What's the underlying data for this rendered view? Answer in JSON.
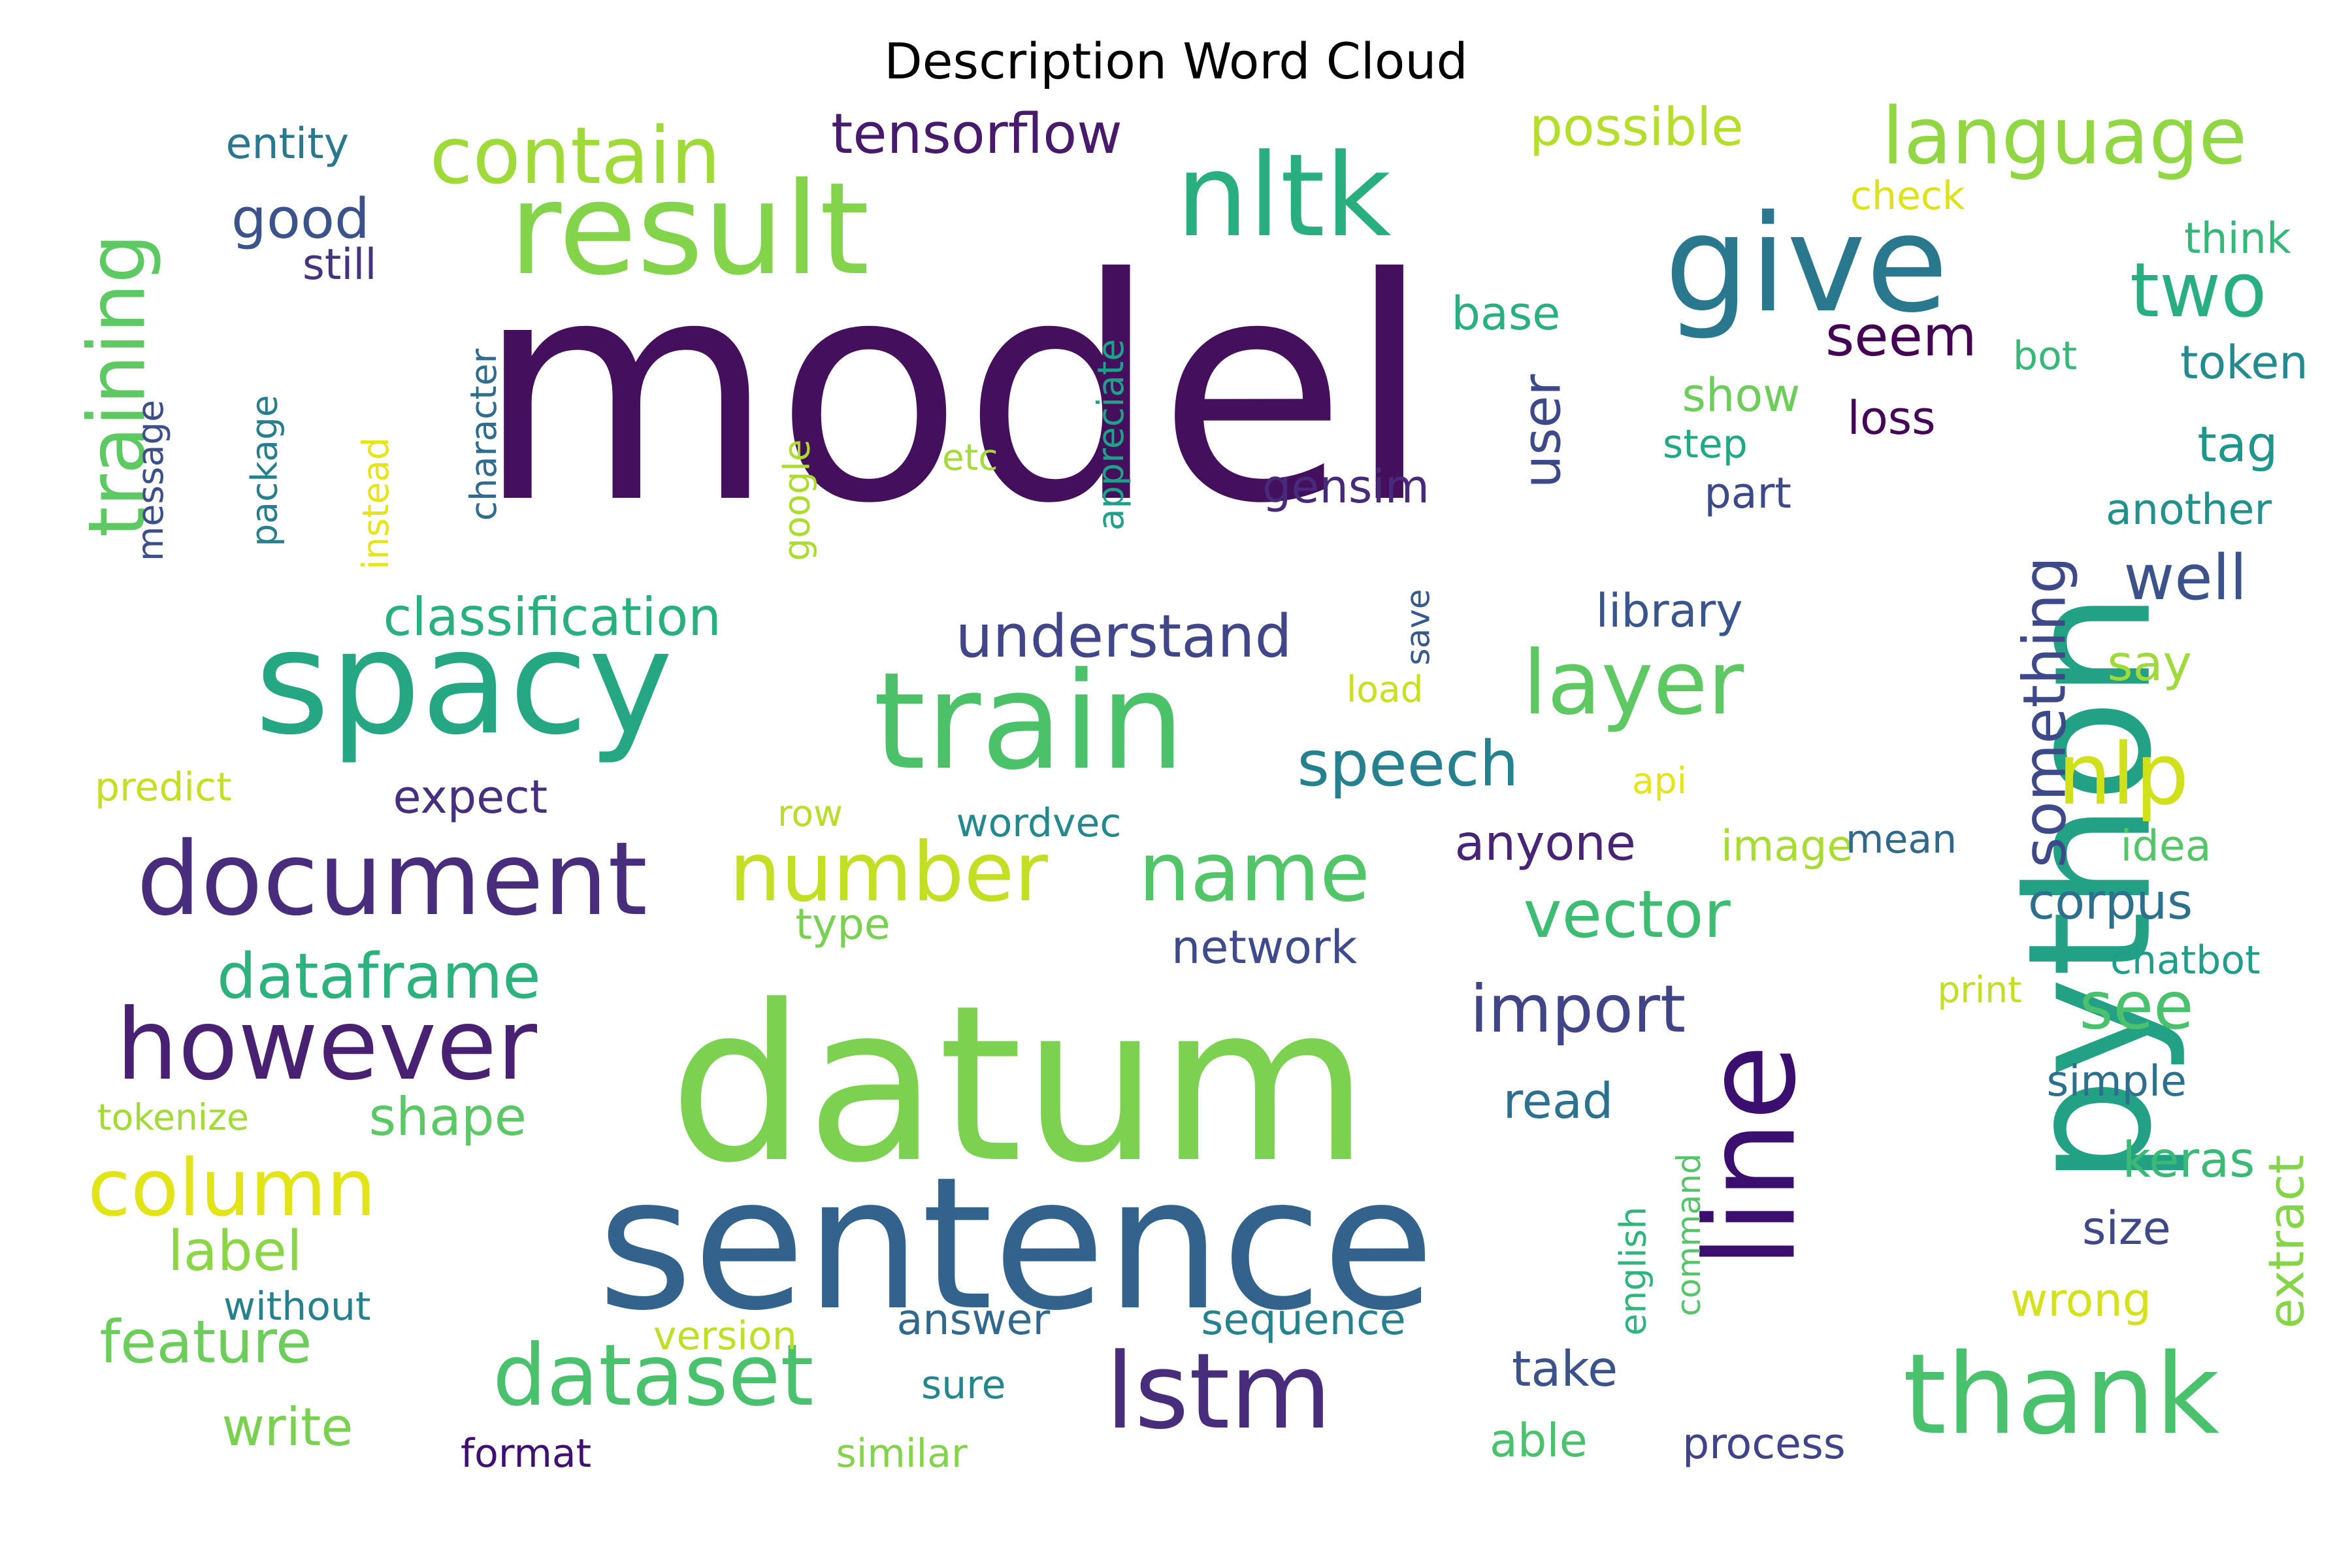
{
  "title": "Description Word Cloud",
  "palette": "viridis",
  "words": [
    {
      "text": "model",
      "color": "#440f5c"
    },
    {
      "text": "datum",
      "color": "#7cd250"
    },
    {
      "text": "sentence",
      "color": "#33638d"
    },
    {
      "text": "python",
      "color": "#22a184"
    },
    {
      "text": "spacy",
      "color": "#25a784"
    },
    {
      "text": "result",
      "color": "#84d44b"
    },
    {
      "text": "train",
      "color": "#4bc16a"
    },
    {
      "text": "give",
      "color": "#2a788e"
    },
    {
      "text": "nltk",
      "color": "#29af7f"
    },
    {
      "text": "line",
      "color": "#3b0f6f"
    },
    {
      "text": "thank",
      "color": "#4ac16d"
    },
    {
      "text": "lstm",
      "color": "#472d7b"
    },
    {
      "text": "document",
      "color": "#472d7b"
    },
    {
      "text": "however",
      "color": "#482173"
    },
    {
      "text": "training",
      "color": "#5ec962"
    },
    {
      "text": "contain",
      "color": "#a0da39"
    },
    {
      "text": "language",
      "color": "#90d743"
    },
    {
      "text": "layer",
      "color": "#5ec962"
    },
    {
      "text": "nlp",
      "color": "#d0e11c"
    },
    {
      "text": "number",
      "color": "#c2df23"
    },
    {
      "text": "name",
      "color": "#52c569"
    },
    {
      "text": "dataset",
      "color": "#4ac16d"
    },
    {
      "text": "column",
      "color": "#e2e418"
    },
    {
      "text": "two",
      "color": "#28ae80"
    },
    {
      "text": "vector",
      "color": "#3fbc73"
    },
    {
      "text": "see",
      "color": "#4ac16d"
    },
    {
      "text": "something",
      "color": "#3e4989"
    },
    {
      "text": "speech",
      "color": "#26818e"
    },
    {
      "text": "import",
      "color": "#414487"
    },
    {
      "text": "understand",
      "color": "#404688"
    },
    {
      "text": "classification",
      "color": "#2ab07f"
    },
    {
      "text": "dataframe",
      "color": "#2db27d"
    },
    {
      "text": "tensorflow",
      "color": "#481a6c"
    },
    {
      "text": "possible",
      "color": "#b5de2b"
    },
    {
      "text": "seem",
      "color": "#440154"
    },
    {
      "text": "well",
      "color": "#3b528b"
    },
    {
      "text": "user",
      "color": "#3e4989"
    },
    {
      "text": "feature",
      "color": "#6ccd5a"
    },
    {
      "text": "extract",
      "color": "#86d549"
    },
    {
      "text": "good",
      "color": "#3b528b"
    },
    {
      "text": "entity",
      "color": "#2a788e"
    },
    {
      "text": "still",
      "color": "#46337f"
    },
    {
      "text": "base",
      "color": "#2ab07f"
    },
    {
      "text": "token",
      "color": "#238a8d"
    },
    {
      "text": "tag",
      "color": "#1f968b"
    },
    {
      "text": "show",
      "color": "#6ccd5a"
    },
    {
      "text": "step",
      "color": "#22a884"
    },
    {
      "text": "loss",
      "color": "#450559"
    },
    {
      "text": "bot",
      "color": "#37b878"
    },
    {
      "text": "think",
      "color": "#35b779"
    },
    {
      "text": "check",
      "color": "#dde318"
    },
    {
      "text": "gensim",
      "color": "#472a7a"
    },
    {
      "text": "part",
      "color": "#3e4989"
    },
    {
      "text": "another",
      "color": "#21918c"
    },
    {
      "text": "library",
      "color": "#3a548c"
    },
    {
      "text": "say",
      "color": "#9fda3a"
    },
    {
      "text": "label",
      "color": "#8bd646"
    },
    {
      "text": "shape",
      "color": "#5ac864"
    },
    {
      "text": "write",
      "color": "#7ad151"
    },
    {
      "text": "expect",
      "color": "#46307e"
    },
    {
      "text": "wordvec",
      "color": "#23898e"
    },
    {
      "text": "anyone",
      "color": "#482475"
    },
    {
      "text": "image",
      "color": "#a8db34"
    },
    {
      "text": "mean",
      "color": "#31688e"
    },
    {
      "text": "idea",
      "color": "#54c568"
    },
    {
      "text": "corpus",
      "color": "#2d708e"
    },
    {
      "text": "chatbot",
      "color": "#1f9e89"
    },
    {
      "text": "print",
      "color": "#c0df25"
    },
    {
      "text": "network",
      "color": "#3e4a89"
    },
    {
      "text": "type",
      "color": "#7ad151"
    },
    {
      "text": "read",
      "color": "#2c728e"
    },
    {
      "text": "simple",
      "color": "#2d708e"
    },
    {
      "text": "keras",
      "color": "#3aba76"
    },
    {
      "text": "size",
      "color": "#3f4889"
    },
    {
      "text": "wrong",
      "color": "#d5e21a"
    },
    {
      "text": "take",
      "color": "#3b528b"
    },
    {
      "text": "able",
      "color": "#4ac16d"
    },
    {
      "text": "process",
      "color": "#404387"
    },
    {
      "text": "english",
      "color": "#2fb47c"
    },
    {
      "text": "command",
      "color": "#54c568"
    },
    {
      "text": "save",
      "color": "#38598c"
    },
    {
      "text": "load",
      "color": "#c8e020"
    },
    {
      "text": "api",
      "color": "#e5e419"
    },
    {
      "text": "row",
      "color": "#b8de29"
    },
    {
      "text": "predict",
      "color": "#c5e021"
    },
    {
      "text": "tokenize",
      "color": "#a2da37"
    },
    {
      "text": "without",
      "color": "#26818e"
    },
    {
      "text": "version",
      "color": "#bddf26"
    },
    {
      "text": "answer",
      "color": "#31688e"
    },
    {
      "text": "sequence",
      "color": "#26828e"
    },
    {
      "text": "sure",
      "color": "#24878e"
    },
    {
      "text": "format",
      "color": "#3f0f72"
    },
    {
      "text": "similar",
      "color": "#84d44b"
    },
    {
      "text": "etc",
      "color": "#a5db36"
    },
    {
      "text": "appreciate",
      "color": "#1fa188"
    },
    {
      "text": "character",
      "color": "#2f6c8e"
    },
    {
      "text": "instead",
      "color": "#e7e419"
    },
    {
      "text": "package",
      "color": "#277f8e"
    },
    {
      "text": "message",
      "color": "#3c4f8a"
    },
    {
      "text": "google",
      "color": "#addc30"
    }
  ]
}
